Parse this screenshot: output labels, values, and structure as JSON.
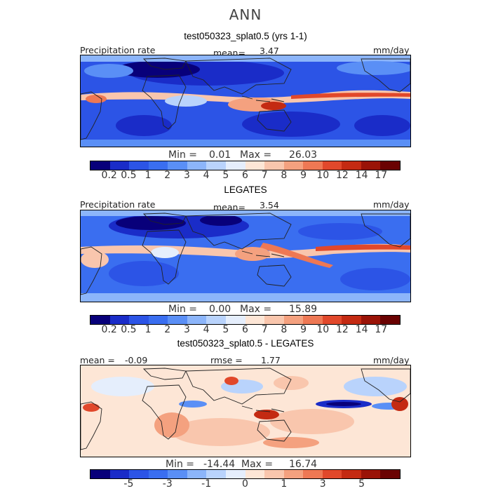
{
  "title": "ANN",
  "colors": {
    "scale": [
      "#08007a",
      "#1a2cc8",
      "#2c54e6",
      "#3a6ef0",
      "#5a8ff6",
      "#8cb5fa",
      "#b9d3fc",
      "#e5eefc",
      "#fde6d6",
      "#f9c6ad",
      "#f4a17f",
      "#ee7854",
      "#e1482b",
      "#c42a12",
      "#9a1307",
      "#6a0202"
    ],
    "land": "#222222"
  },
  "panels": [
    {
      "id": "model",
      "title": "test050323_splat0.5 (yrs 1-1)",
      "left_label": "Precipitation rate",
      "mid_label": "mean=",
      "mid_value": "3.47",
      "right_label": "mm/day",
      "min_label": "Min =",
      "min_value": "0.01",
      "max_label": "Max =",
      "max_value": "26.03",
      "ticks": [
        "0.2",
        "0.5",
        "1",
        "2",
        "3",
        "4",
        "5",
        "6",
        "7",
        "8",
        "9",
        "10",
        "12",
        "14",
        "17"
      ]
    },
    {
      "id": "obs",
      "title": "LEGATES",
      "left_label": "Precipitation rate",
      "mid_label": "mean=",
      "mid_value": "3.54",
      "right_label": "mm/day",
      "min_label": "Min =",
      "min_value": "0.00",
      "max_label": "Max =",
      "max_value": "15.89",
      "ticks": [
        "0.2",
        "0.5",
        "1",
        "2",
        "3",
        "4",
        "5",
        "6",
        "7",
        "8",
        "9",
        "10",
        "12",
        "14",
        "17"
      ]
    },
    {
      "id": "diff",
      "title": "test050323_splat0.5 - LEGATES",
      "left_label": "mean =",
      "left_value": "-0.09",
      "mid_label": "rmse =",
      "mid_value": "1.77",
      "right_label": "mm/day",
      "min_label": "Min =",
      "min_value": "-14.44",
      "max_label": "Max =",
      "max_value": "16.74",
      "ticks": [
        "-5",
        "-3",
        "-1",
        "0",
        "1",
        "3",
        "5"
      ]
    }
  ]
}
